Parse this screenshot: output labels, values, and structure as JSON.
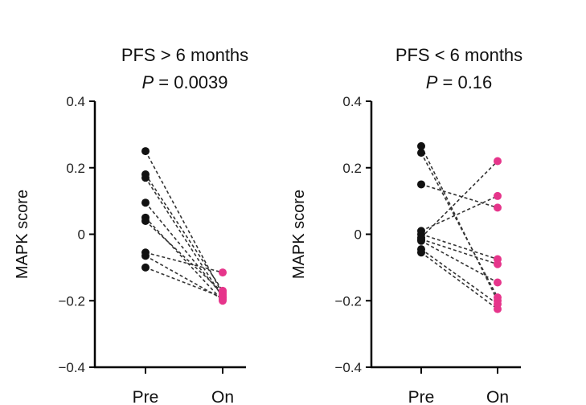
{
  "chart_data": [
    {
      "type": "scatter",
      "title": "PFS > 6 months",
      "subtitle_label": "P",
      "subtitle_value": " = 0.0039",
      "ylabel": "MAPK score",
      "xlabel": "",
      "categories": [
        "Pre",
        "On"
      ],
      "ylim": [
        -0.4,
        0.4
      ],
      "yticks": [
        0.4,
        0.2,
        0,
        -0.2,
        -0.4
      ],
      "ytick_labels": [
        "0.4",
        "0.2",
        "0",
        "−0.2",
        "−0.4"
      ],
      "pairs": [
        {
          "pre": 0.25,
          "on": -0.18
        },
        {
          "pre": 0.18,
          "on": -0.17
        },
        {
          "pre": 0.17,
          "on": -0.19
        },
        {
          "pre": 0.095,
          "on": -0.185
        },
        {
          "pre": 0.05,
          "on": -0.2
        },
        {
          "pre": 0.04,
          "on": -0.175
        },
        {
          "pre": -0.055,
          "on": -0.115
        },
        {
          "pre": -0.065,
          "on": -0.195
        },
        {
          "pre": -0.1,
          "on": -0.19
        }
      ],
      "colors": {
        "pre": "#111111",
        "on": "#e6358b",
        "line": "#333333"
      }
    },
    {
      "type": "scatter",
      "title": "PFS < 6 months",
      "subtitle_label": "P",
      "subtitle_value": " = 0.16",
      "ylabel": "MAPK score",
      "xlabel": "",
      "categories": [
        "Pre",
        "On"
      ],
      "ylim": [
        -0.4,
        0.4
      ],
      "yticks": [
        0.4,
        0.2,
        0,
        -0.2,
        -0.4
      ],
      "ytick_labels": [
        "0.4",
        "0.2",
        "0",
        "−0.2",
        "−0.4"
      ],
      "pairs": [
        {
          "pre": 0.265,
          "on": -0.2
        },
        {
          "pre": 0.245,
          "on": -0.19
        },
        {
          "pre": 0.15,
          "on": 0.08
        },
        {
          "pre": 0.01,
          "on": 0.115
        },
        {
          "pre": 0.0,
          "on": -0.075
        },
        {
          "pre": -0.01,
          "on": 0.22
        },
        {
          "pre": -0.015,
          "on": -0.09
        },
        {
          "pre": -0.02,
          "on": -0.145
        },
        {
          "pre": -0.045,
          "on": -0.21
        },
        {
          "pre": -0.055,
          "on": -0.225
        }
      ],
      "colors": {
        "pre": "#111111",
        "on": "#e6358b",
        "line": "#333333"
      }
    }
  ]
}
